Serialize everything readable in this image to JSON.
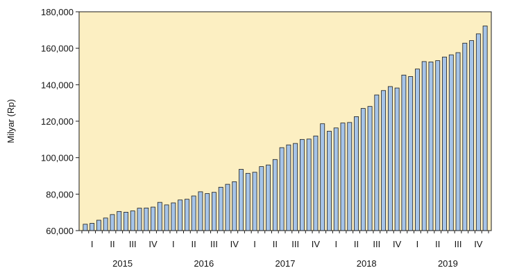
{
  "chart_data": {
    "type": "bar",
    "ylabel": "Milyar (Rp)",
    "ylim": [
      60000,
      180000
    ],
    "y_ticks": [
      60000,
      80000,
      100000,
      120000,
      140000,
      160000,
      180000
    ],
    "y_tick_labels": [
      "60,000",
      "80,000",
      "100,000",
      "120,000",
      "140,000",
      "160,000",
      "180,000"
    ],
    "years": [
      "2015",
      "2016",
      "2017",
      "2018",
      "2019"
    ],
    "quarter_labels": [
      "I",
      "II",
      "III",
      "IV"
    ],
    "grid": false,
    "colors": {
      "plot_background": "#fcefc2",
      "bar_fill": "#a6c4e8",
      "bar_stroke": "#1a1a1a",
      "axis": "#1a1a1a"
    },
    "values": [
      63500,
      64000,
      65700,
      66900,
      68800,
      70500,
      70100,
      70800,
      72300,
      72400,
      72900,
      75500,
      74100,
      75200,
      76800,
      77200,
      79000,
      81300,
      80300,
      81000,
      83800,
      85400,
      86800,
      93600,
      91400,
      92000,
      95100,
      96000,
      99000,
      105500,
      107000,
      107800,
      110000,
      110200,
      111900,
      118600,
      114500,
      116300,
      119000,
      119300,
      122500,
      127000,
      128100,
      134400,
      136800,
      139000,
      138200,
      145300,
      144500,
      148600,
      152700,
      152500,
      153200,
      155200,
      156400,
      157600,
      162800,
      164200,
      167900,
      172200
    ]
  }
}
